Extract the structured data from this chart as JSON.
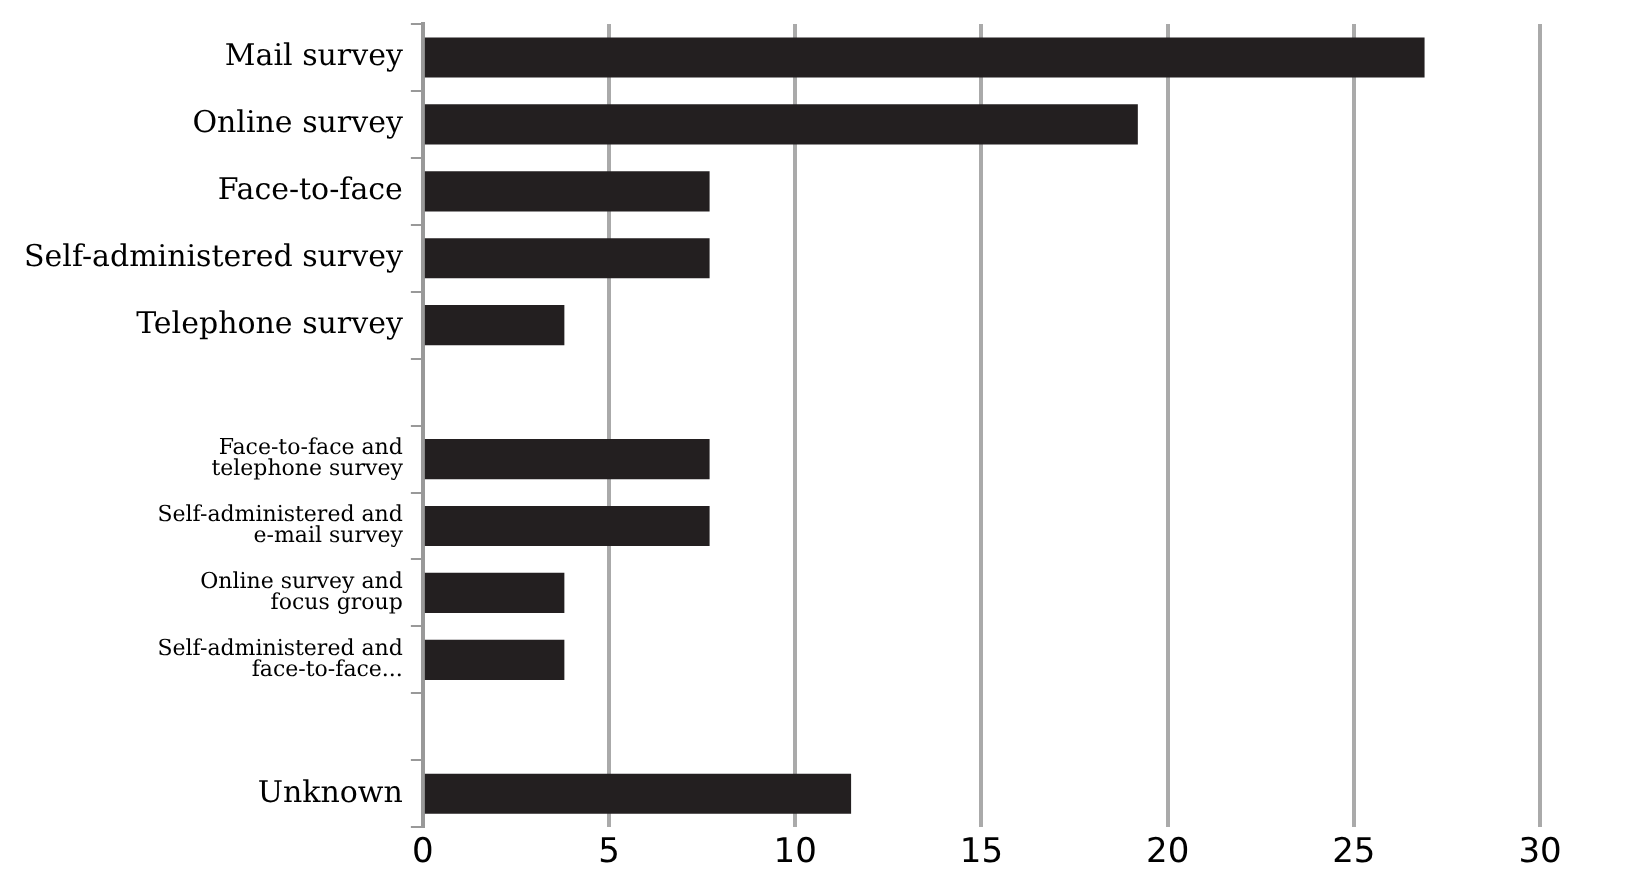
{
  "chart_data": {
    "type": "bar",
    "orientation": "horizontal",
    "categories": [
      "Mail survey",
      "Online survey",
      "Face-to-face",
      "Self-administered survey",
      "Telephone survey",
      null,
      "Face-to-face and\ntelephone survey",
      "Self-administered and\ne-mail survey",
      "Online survey and\nfocus group",
      "Self-administered and\nface-to-face...",
      null,
      "Unknown"
    ],
    "values": [
      26.9,
      19.2,
      7.7,
      7.7,
      3.8,
      null,
      7.7,
      7.7,
      3.8,
      3.8,
      null,
      11.5
    ],
    "color": "#231f20",
    "xlim": [
      0,
      30
    ],
    "xticks": [
      0,
      5,
      10,
      15,
      20,
      25,
      30
    ],
    "grid": "x"
  }
}
